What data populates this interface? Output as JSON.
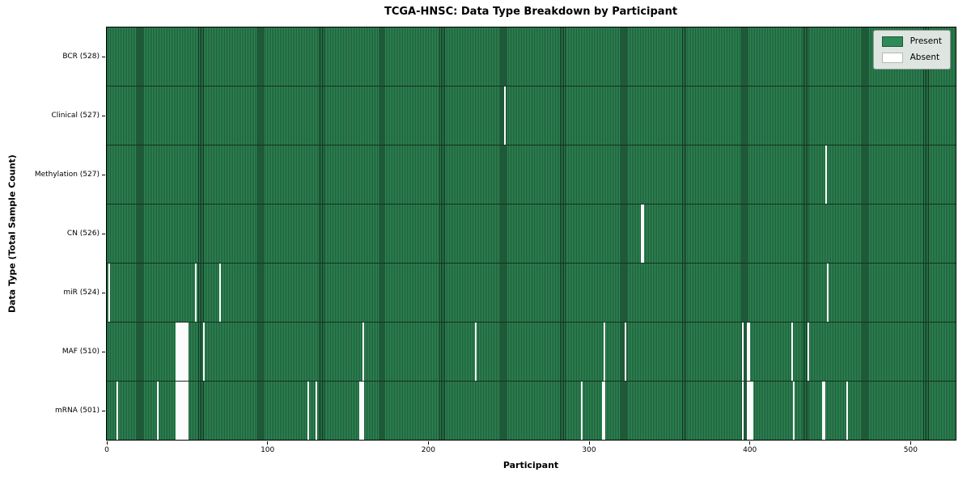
{
  "title": "TCGA-HNSC: Data Type Breakdown by Participant",
  "legend": {
    "items": [
      {
        "label": "Present",
        "color": "#2e8b57"
      },
      {
        "label": "Absent",
        "color": "#ffffff"
      }
    ]
  },
  "chart_data": {
    "type": "heatmap",
    "title": "TCGA-HNSC: Data Type Breakdown by Participant",
    "xlabel": "Participant",
    "ylabel": "Data Type (Total Sample Count)",
    "x_ticks": [
      0,
      100,
      200,
      300,
      400,
      500
    ],
    "xlim": [
      0,
      528
    ],
    "n_participants": 528,
    "legend_position": "upper right",
    "grid": false,
    "colors": {
      "present": "#2e8b57",
      "absent": "#fbfbfb",
      "bar_edge": "#10291a"
    },
    "rows": [
      {
        "name": "BCR",
        "label": "BCR (528)",
        "present_count": 528,
        "absent_participants": []
      },
      {
        "name": "Clinical",
        "label": "Clinical (527)",
        "present_count": 527,
        "absent_participants": [
          247
        ]
      },
      {
        "name": "Methylation",
        "label": "Methylation (527)",
        "present_count": 527,
        "absent_participants": [
          447
        ]
      },
      {
        "name": "CN",
        "label": "CN (526)",
        "present_count": 526,
        "absent_participants": [
          332,
          333
        ]
      },
      {
        "name": "miR",
        "label": "miR (524)",
        "present_count": 524,
        "absent_participants": [
          1,
          55,
          70,
          448
        ]
      },
      {
        "name": "MAF",
        "label": "MAF (510)",
        "present_count": 510,
        "absent_participants": [
          43,
          44,
          45,
          46,
          47,
          48,
          49,
          50,
          60,
          159,
          229,
          309,
          322,
          395,
          398,
          399,
          426,
          436
        ]
      },
      {
        "name": "mRNA",
        "label": "mRNA (501)",
        "present_count": 501,
        "absent_participants": [
          6,
          31,
          43,
          44,
          45,
          46,
          47,
          48,
          49,
          50,
          125,
          130,
          157,
          158,
          159,
          295,
          308,
          309,
          395,
          398,
          399,
          400,
          401,
          427,
          445,
          446,
          460
        ]
      }
    ]
  }
}
